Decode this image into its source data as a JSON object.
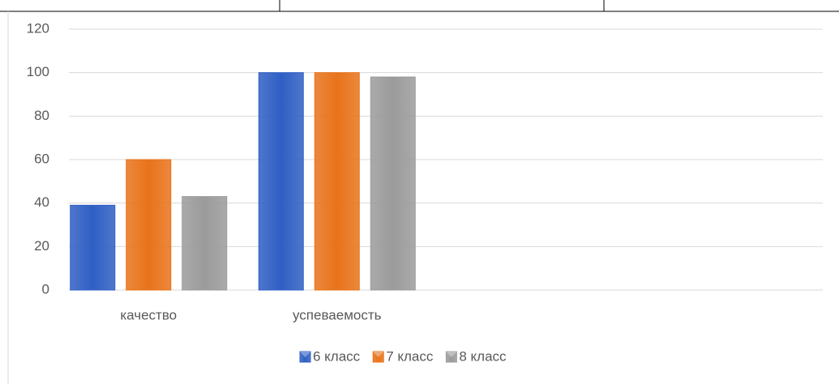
{
  "chart_data": {
    "type": "bar",
    "categories": [
      "качество",
      "успеваемость",
      null,
      null
    ],
    "series": [
      {
        "name": "6 класс",
        "color": "#2f5fc4",
        "values": [
          39,
          100,
          null,
          null
        ]
      },
      {
        "name": "7 класс",
        "color": "#e8731a",
        "values": [
          60,
          100,
          null,
          null
        ]
      },
      {
        "name": "8 класс",
        "color": "#9b9b9b",
        "values": [
          43,
          98,
          null,
          null
        ]
      }
    ],
    "ylim": [
      0,
      120
    ],
    "yticks": [
      0,
      20,
      40,
      60,
      80,
      100,
      120
    ],
    "grid": true,
    "legend": "bottom"
  }
}
